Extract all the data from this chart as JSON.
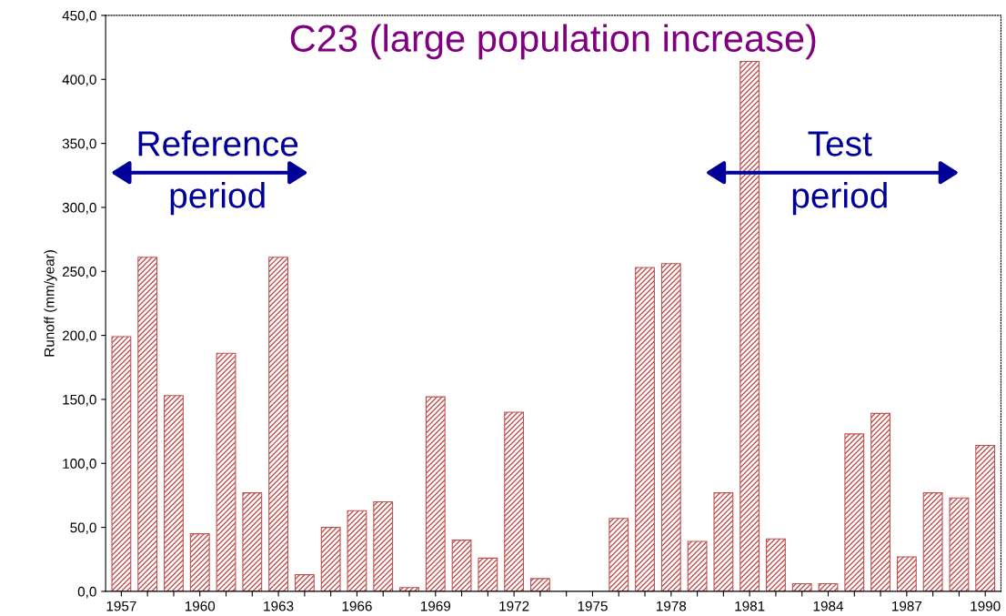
{
  "chart_data": {
    "type": "bar",
    "title": "C23 (large population increase)",
    "ylabel": "Runoff (mm/year)",
    "categories": [
      "1957",
      null,
      null,
      "1960",
      null,
      null,
      "1963",
      null,
      null,
      "1966",
      null,
      null,
      "1969",
      null,
      null,
      "1972",
      null,
      null,
      "1975",
      null,
      null,
      "1978",
      null,
      null,
      "1981",
      null,
      null,
      "1984",
      null,
      null,
      "1987",
      null,
      null,
      "1990"
    ],
    "values": [
      199,
      261,
      153,
      45,
      186,
      77,
      261,
      13,
      50,
      63,
      70,
      3,
      152,
      40,
      26,
      140,
      10,
      null,
      null,
      57,
      253,
      256,
      39,
      77,
      414,
      41,
      6,
      6,
      123,
      139,
      27,
      77,
      73,
      114
    ],
    "color": "#c0504d",
    "ylim": [
      0,
      450
    ],
    "yticks": [
      {
        "value": 0,
        "label": "0,0"
      },
      {
        "value": 50,
        "label": "50,0"
      },
      {
        "value": 100,
        "label": "100,0"
      },
      {
        "value": 150,
        "label": "150,0"
      },
      {
        "value": 200,
        "label": "200,0"
      },
      {
        "value": 250,
        "label": "250,0"
      },
      {
        "value": 300,
        "label": "300,0"
      },
      {
        "value": 350,
        "label": "350,0"
      },
      {
        "value": 400,
        "label": "400,0"
      },
      {
        "value": 450,
        "label": "450,0"
      }
    ],
    "annotations": [
      "Reference\nperiod",
      "Test\nperiod"
    ],
    "grid": false,
    "legend": false
  }
}
